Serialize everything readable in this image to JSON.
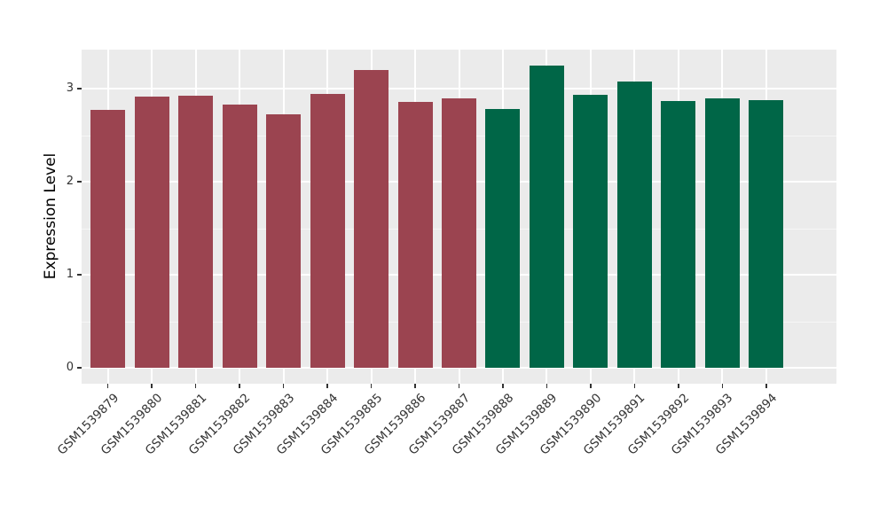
{
  "chart_data": {
    "type": "bar",
    "title": "",
    "xlabel": "",
    "ylabel": "Expression Level",
    "categories": [
      "GSM1539879",
      "GSM1539880",
      "GSM1539881",
      "GSM1539882",
      "GSM1539883",
      "GSM1539884",
      "GSM1539885",
      "GSM1539886",
      "GSM1539887",
      "GSM1539888",
      "GSM1539889",
      "GSM1539890",
      "GSM1539891",
      "GSM1539892",
      "GSM1539893",
      "GSM1539894"
    ],
    "values": [
      2.77,
      2.91,
      2.92,
      2.83,
      2.72,
      2.94,
      3.2,
      2.86,
      2.9,
      2.78,
      3.25,
      2.93,
      3.08,
      2.87,
      2.9,
      2.88
    ],
    "groups": [
      {
        "hex": "#9B4450",
        "start_index": 0,
        "end_index": 8
      },
      {
        "hex": "#006647",
        "start_index": 9,
        "end_index": 15
      }
    ],
    "y_ticks": [
      "0",
      "1",
      "2",
      "3"
    ],
    "y_tick_values": [
      0,
      1,
      2,
      3
    ],
    "y_minor_tick_values": [
      0.5,
      1.5,
      2.5
    ],
    "ylim": [
      -0.17,
      3.42
    ],
    "x_label_angle_deg": 45,
    "bar_width_ratio": 0.75,
    "grid": true,
    "legend": "none",
    "theme": {
      "panel_bg": "#EBEBEB",
      "grid_major": "#FFFFFF",
      "grid_minor": "#F6F6F6",
      "tick_label_color": "#333333",
      "axis_title_color": "#000000",
      "tick_mark_color": "#333333",
      "figure_bg": "#FFFFFF"
    }
  }
}
